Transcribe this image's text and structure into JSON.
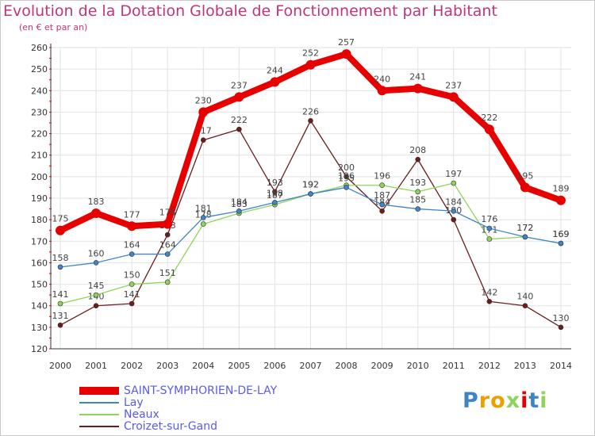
{
  "chart_data": {
    "type": "line",
    "title": "Evolution de la Dotation Globale de Fonctionnement par Habitant",
    "subtitle": "(en € et par an)",
    "xlabel": "",
    "ylabel": "",
    "categories": [
      "2000",
      "2001",
      "2002",
      "2003",
      "2004",
      "2005",
      "2006",
      "2007",
      "2008",
      "2009",
      "2010",
      "2011",
      "2012",
      "2013",
      "2014"
    ],
    "ylim": [
      120,
      260
    ],
    "yticks": [
      120,
      130,
      140,
      150,
      160,
      170,
      180,
      190,
      200,
      210,
      220,
      230,
      240,
      250,
      260
    ],
    "grid": true,
    "legend_position": "bottom-left",
    "series": [
      {
        "name": "SAINT-SYMPHORIEN-DE-LAY",
        "color": "#e60000",
        "values": [
          175,
          183,
          177,
          178,
          230,
          237,
          244,
          252,
          257,
          240,
          241,
          237,
          222,
          195,
          189
        ]
      },
      {
        "name": "Lay",
        "color": "#3d85c6",
        "values": [
          158,
          160,
          164,
          164,
          181,
          184,
          188,
          192,
          195,
          187,
          185,
          184,
          176,
          172,
          169
        ]
      },
      {
        "name": "Neaux",
        "color": "#8fd45a",
        "values": [
          141,
          145,
          150,
          151,
          178,
          183,
          187,
          192,
          196,
          196,
          193,
          197,
          171,
          172,
          169
        ]
      },
      {
        "name": "Croizet-sur-Gand",
        "color": "#6b1d1d",
        "values": [
          131,
          140,
          141,
          173,
          217,
          222,
          193,
          226,
          200,
          184,
          208,
          180,
          142,
          140,
          130
        ]
      }
    ]
  },
  "logo": {
    "text": "Proxiti"
  }
}
